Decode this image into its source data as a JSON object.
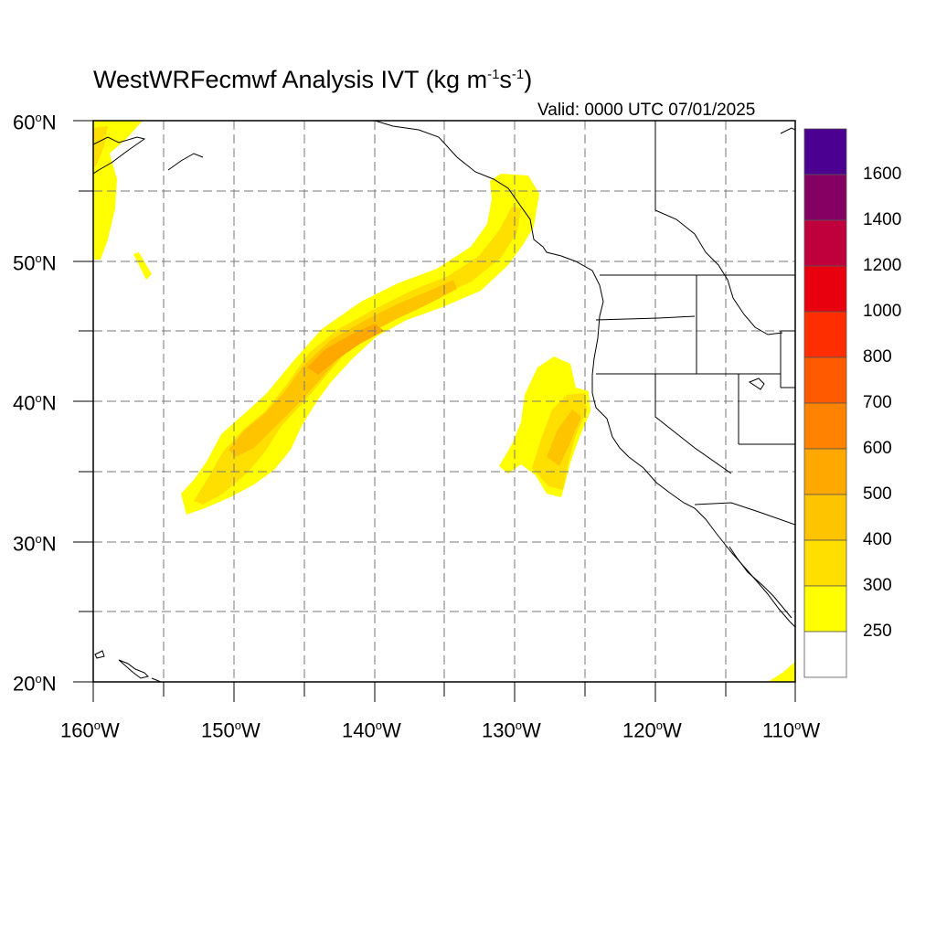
{
  "title": {
    "main": "WestWRFecmwf Analysis IVT (kg m",
    "sup1": "-1",
    "mid": "s",
    "sup2": "-1",
    "end": ")"
  },
  "valid_text": "Valid: 0000 UTC 07/01/2025",
  "map": {
    "lon_range": [
      -160,
      -110
    ],
    "lat_range": [
      20,
      60
    ],
    "projection": "cylindrical equidistant",
    "grid": "dashed, every 5 degrees",
    "lat_labels": [
      {
        "num": "60",
        "sym": "o",
        "hem": "N"
      },
      {
        "num": "50",
        "sym": "o",
        "hem": "N"
      },
      {
        "num": "40",
        "sym": "o",
        "hem": "N"
      },
      {
        "num": "30",
        "sym": "o",
        "hem": "N"
      },
      {
        "num": "20",
        "sym": "o",
        "hem": "N"
      }
    ],
    "lon_labels": [
      {
        "num": "160",
        "sym": "o",
        "hem": "W"
      },
      {
        "num": "150",
        "sym": "o",
        "hem": "W"
      },
      {
        "num": "140",
        "sym": "o",
        "hem": "W"
      },
      {
        "num": "130",
        "sym": "o",
        "hem": "W"
      },
      {
        "num": "120",
        "sym": "o",
        "hem": "W"
      },
      {
        "num": "110",
        "sym": "o",
        "hem": "W"
      }
    ]
  },
  "colorbar": {
    "labels": [
      "1600",
      "1400",
      "1200",
      "1000",
      "800",
      "700",
      "600",
      "500",
      "400",
      "300",
      "250"
    ],
    "colors": [
      "#4b0092",
      "#840062",
      "#c0003c",
      "#e8000f",
      "#ff2e00",
      "#ff5a00",
      "#ff8200",
      "#ffa800",
      "#ffc400",
      "#ffdf00",
      "#ffff00",
      "#ffffff"
    ]
  },
  "features": [
    {
      "name": "main-atmospheric-river",
      "lon_span": [
        -154,
        -129
      ],
      "lat_span": [
        32,
        56
      ],
      "max_category": "500"
    },
    {
      "name": "offshore-california-plume",
      "lon_span": [
        -131,
        -125
      ],
      "lat_span": [
        33.5,
        43.5
      ],
      "max_category": "400"
    },
    {
      "name": "gulf-of-alaska-patch",
      "lon_span": [
        -160,
        -156
      ],
      "lat_span": [
        50.5,
        60
      ],
      "max_category": "300"
    },
    {
      "name": "mexico-patch",
      "lon_span": [
        -112,
        -110
      ],
      "lat_span": [
        20,
        21.5
      ],
      "max_category": "300"
    }
  ]
}
